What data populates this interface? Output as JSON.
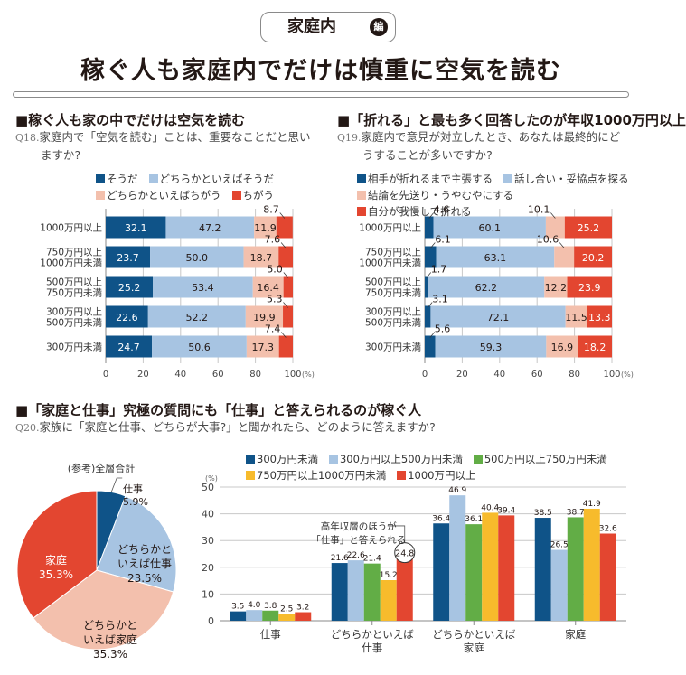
{
  "header": {
    "badge_label": "家庭内",
    "badge_mark": "編",
    "title": "稼ぐ人も家庭内でだけは慎重に空気を読む"
  },
  "colors": {
    "dark_blue": "#0f5388",
    "light_blue": "#a7c4e2",
    "pink": "#f3c0ad",
    "red": "#e34630",
    "green": "#62ad46",
    "yellow": "#f7bb2c",
    "grid": "#c8c8c8",
    "axis_text": "#444444"
  },
  "sections": {
    "q18": {
      "heading": "■稼ぐ人も家の中でだけは空気を読む",
      "qnum": "Q18.",
      "question_line1": "家庭内で「空気を読む」ことは、重要なことだと思い",
      "question_line2": "ますか?"
    },
    "q19": {
      "heading": "■「折れる」と最も多く回答したのが年収1000万円以上",
      "qnum": "Q19.",
      "question_line1": "家庭内で意見が対立したとき、あなたは最終的にど",
      "question_line2": "うすることが多いですか?"
    },
    "q20": {
      "heading": "■「家庭と仕事」究極の質問にも「仕事」と答えられるのが稼ぐ人",
      "qnum": "Q20.",
      "question_line1": "家族に「家庭と仕事、どちらが大事?」と聞かれたら、どのように答えますか?"
    }
  },
  "chart_data": [
    {
      "type": "bar",
      "orientation": "horizontal-stacked",
      "id": "q18",
      "categories": [
        "1000万円以上",
        "750万円以上\n1000万円未満",
        "500万円以上\n750万円未満",
        "300万円以上\n500万円未満",
        "300万円未満"
      ],
      "series": [
        {
          "name": "そうだ",
          "color": "#0f5388",
          "values": [
            32.1,
            23.7,
            25.2,
            22.6,
            24.7
          ]
        },
        {
          "name": "どちらかといえばそうだ",
          "color": "#a7c4e2",
          "values": [
            47.2,
            50.0,
            53.4,
            52.2,
            50.6
          ]
        },
        {
          "name": "どちらかといえばちがう",
          "color": "#f3c0ad",
          "values": [
            11.9,
            18.7,
            16.4,
            19.9,
            17.3
          ]
        },
        {
          "name": "ちがう",
          "color": "#e34630",
          "values": [
            8.7,
            7.6,
            5.0,
            5.3,
            7.4
          ]
        }
      ],
      "xlim": [
        0,
        100
      ],
      "xticks": [
        "0",
        "20",
        "40",
        "60",
        "80",
        "100"
      ],
      "xunit": "(%)",
      "grid": true,
      "legend": "top"
    },
    {
      "type": "bar",
      "orientation": "horizontal-stacked",
      "id": "q19",
      "categories": [
        "1000万円以上",
        "750万円以上\n1000万円未満",
        "500万円以上\n750万円未満",
        "300万円以上\n500万円未満",
        "300万円未満"
      ],
      "series": [
        {
          "name": "相手が折れるまで主張する",
          "color": "#0f5388",
          "values": [
            4.6,
            6.1,
            1.7,
            3.1,
            5.6
          ]
        },
        {
          "name": "話し合い・妥協点を探る",
          "color": "#a7c4e2",
          "values": [
            60.1,
            63.1,
            62.2,
            72.1,
            59.3
          ]
        },
        {
          "name": "結論を先送り・うやむやにする",
          "color": "#f3c0ad",
          "values": [
            10.1,
            10.6,
            12.2,
            11.5,
            16.9
          ]
        },
        {
          "name": "自分が我慢して折れる",
          "color": "#e34630",
          "values": [
            25.2,
            20.2,
            23.9,
            13.3,
            18.2
          ]
        }
      ],
      "xlim": [
        0,
        100
      ],
      "xticks": [
        "0",
        "20",
        "40",
        "60",
        "80",
        "100"
      ],
      "xunit": "(%)",
      "grid": true,
      "legend": "top"
    },
    {
      "type": "pie",
      "id": "q20-total",
      "title": "(参考)全層合計",
      "slices": [
        {
          "label": "仕事",
          "value": 5.9,
          "display": "5.9%",
          "color": "#0f5388"
        },
        {
          "label": "どちらかと\nいえば仕事",
          "value": 23.5,
          "display": "23.5%",
          "color": "#a7c4e2"
        },
        {
          "label": "どちらかと\nいえば家庭",
          "value": 35.3,
          "display": "35.3%",
          "color": "#f3c0ad"
        },
        {
          "label": "家庭",
          "value": 35.3,
          "display": "35.3%",
          "color": "#e34630"
        }
      ]
    },
    {
      "type": "bar",
      "orientation": "vertical-grouped",
      "id": "q20-by-income",
      "categories": [
        "仕事",
        "どちらかといえば\n仕事",
        "どちらかといえば\n家庭",
        "家庭"
      ],
      "series": [
        {
          "name": "300万円未満",
          "color": "#0f5388",
          "values": [
            3.5,
            21.6,
            36.4,
            38.5
          ]
        },
        {
          "name": "300万円以上500万円未満",
          "color": "#a7c4e2",
          "values": [
            4.0,
            22.6,
            46.9,
            26.5
          ]
        },
        {
          "name": "500万円以上750万円未満",
          "color": "#62ad46",
          "values": [
            3.8,
            21.4,
            36.1,
            38.7
          ]
        },
        {
          "name": "750万円以上1000万円未満",
          "color": "#f7bb2c",
          "values": [
            2.5,
            15.2,
            40.4,
            41.9
          ]
        },
        {
          "name": "1000万円以上",
          "color": "#e34630",
          "values": [
            3.2,
            24.8,
            39.4,
            32.6
          ]
        }
      ],
      "ylim": [
        0,
        50
      ],
      "yticks": [
        "0",
        "10",
        "20",
        "30",
        "40",
        "50"
      ],
      "yunit": "(%)",
      "grid": true,
      "legend": "top",
      "annotation": {
        "text_line1": "高年収層のほうが",
        "text_line2": "「仕事」と答えられる",
        "target_category": 1,
        "target_series": 4
      }
    }
  ]
}
